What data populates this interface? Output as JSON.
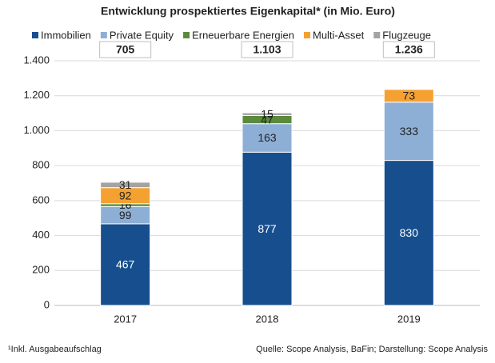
{
  "chart_data": {
    "type": "stacked-bar",
    "title": "Entwicklung prospektiertes Eigenkapital* (in Mio. Euro)",
    "categories": [
      "2017",
      "2018",
      "2019"
    ],
    "series": [
      {
        "name": "Immobilien",
        "color": "#174f8e",
        "values": [
          467,
          877,
          830
        ]
      },
      {
        "name": "Private Equity",
        "color": "#8eafd5",
        "values": [
          99,
          163,
          333
        ]
      },
      {
        "name": "Erneuerbare Energien",
        "color": "#5b8a3c",
        "values": [
          16,
          47,
          null
        ]
      },
      {
        "name": "Multi-Asset",
        "color": "#f4a132",
        "values": [
          92,
          null,
          73
        ]
      },
      {
        "name": "Flugzeuge",
        "color": "#a3a3a3",
        "values": [
          31,
          15,
          null
        ]
      }
    ],
    "annotations": [
      "705",
      "1.103",
      "1.236"
    ],
    "ylim": [
      0,
      1400
    ],
    "yticks": [
      0,
      200,
      400,
      600,
      800,
      {
        "value": 1000,
        "label": "1.000"
      },
      {
        "value": 1200,
        "label": "1.200"
      },
      {
        "value": 1400,
        "label": "1.400"
      }
    ],
    "grid": true,
    "footnote": "¹Inkl. Ausgabeaufschlag",
    "source": "Quelle: Scope Analysis, BaFin; Darstellung: Scope Analysis"
  }
}
